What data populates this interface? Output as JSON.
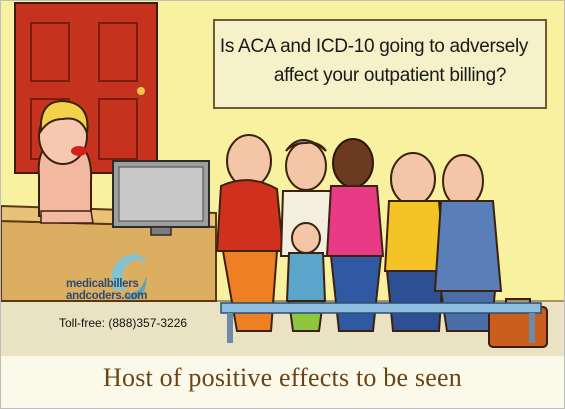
{
  "sign": {
    "line1": "Is ACA and ICD-10 going to adversely",
    "line2": "affect your outpatient billing?"
  },
  "logo": {
    "line1": "medicalbillers",
    "line2": "andcoders.com"
  },
  "contact": {
    "phone": "Toll-free: (888)357-3226"
  },
  "tagline": "Host of positive effects to be seen",
  "colors": {
    "wall": "#f8f1a0",
    "door": "#c5331f",
    "sign_border": "#6e5a34",
    "tagline": "#6b4416",
    "logo_text": "#2f4c73",
    "logo_icon": "#79c4dd"
  }
}
